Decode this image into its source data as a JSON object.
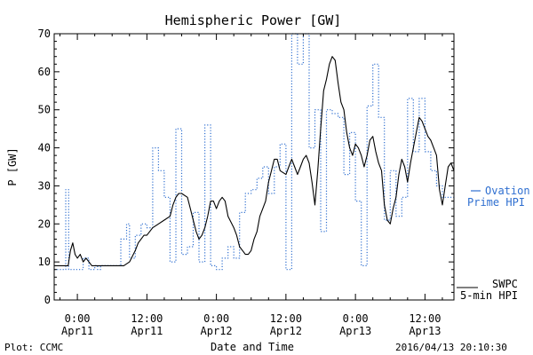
{
  "chart_data": {
    "type": "line",
    "title": "Hemispheric Power [GW]",
    "xlabel": "Date and Time",
    "ylabel": "P [GW]",
    "ylim": [
      0,
      70
    ],
    "xlim": [
      -4,
      65
    ],
    "x_unit": "hours from 2016-04-11 00:00 UT",
    "y_ticks": [
      0,
      10,
      20,
      30,
      40,
      50,
      60,
      70
    ],
    "x_ticks": [
      {
        "x": 0,
        "time": "0:00",
        "date": "Apr11"
      },
      {
        "x": 12,
        "time": "12:00",
        "date": "Apr11"
      },
      {
        "x": 24,
        "time": "0:00",
        "date": "Apr12"
      },
      {
        "x": 36,
        "time": "12:00",
        "date": "Apr12"
      },
      {
        "x": 48,
        "time": "0:00",
        "date": "Apr13"
      },
      {
        "x": 60,
        "time": "12:00",
        "date": "Apr13"
      }
    ],
    "grid": false,
    "legend_position": "right",
    "series": [
      {
        "name": "SWPC 5-min HPI",
        "style": "solid",
        "color": "#000000",
        "x": [
          -4,
          -2,
          -1.6,
          -1.2,
          -0.8,
          -0.4,
          0,
          0.5,
          1,
          1.5,
          2,
          2.5,
          3,
          4,
          5,
          6,
          7,
          8,
          9,
          10,
          10.5,
          11,
          11.5,
          12,
          13,
          14,
          15,
          16,
          16.5,
          17,
          17.5,
          18,
          19,
          19.5,
          20,
          20.5,
          21,
          21.5,
          22,
          22.5,
          23,
          23.5,
          24,
          24.5,
          25,
          25.5,
          26,
          27,
          27.5,
          28,
          28.5,
          29,
          29.5,
          30,
          30.5,
          31,
          31.5,
          32,
          32.5,
          33,
          33.5,
          34,
          34.5,
          35,
          36,
          36.5,
          37,
          37.5,
          38,
          38.5,
          39,
          39.5,
          40,
          40.5,
          41,
          41.5,
          42,
          42.5,
          43,
          43.5,
          44,
          44.5,
          45,
          45.5,
          46,
          46.5,
          47,
          47.5,
          48,
          48.5,
          49,
          49.5,
          50,
          50.5,
          51,
          51.5,
          52,
          52.5,
          53,
          53.5,
          54,
          54.5,
          55,
          55.5,
          56,
          56.5,
          57,
          57.5,
          58,
          58.5,
          59,
          59.5,
          60,
          60.5,
          61,
          61.5,
          62,
          62.5,
          63,
          63.5,
          64,
          64.5,
          65
        ],
        "values": [
          9,
          9,
          9,
          13,
          15,
          12,
          11,
          12,
          10,
          11,
          10,
          9,
          9,
          9,
          9,
          9,
          9,
          9,
          10,
          13,
          15,
          16,
          17,
          17,
          19,
          20,
          21,
          22,
          25,
          27,
          28,
          28,
          27,
          24,
          21,
          18,
          16,
          17,
          19,
          22,
          26,
          26,
          24,
          26,
          27,
          26,
          22,
          19,
          17,
          14,
          13,
          12,
          12,
          13,
          16,
          18,
          22,
          24,
          26,
          31,
          34,
          37,
          37,
          34,
          33,
          35,
          37,
          35,
          33,
          35,
          37,
          38,
          36,
          31,
          25,
          34,
          45,
          55,
          58,
          62,
          64,
          63,
          57,
          52,
          50,
          44,
          40,
          38,
          41,
          40,
          38,
          35,
          38,
          42,
          43,
          39,
          36,
          34,
          25,
          21,
          20,
          24,
          27,
          33,
          37,
          35,
          31,
          36,
          40,
          44,
          48,
          47,
          45,
          43,
          42,
          40,
          38,
          29,
          25,
          30,
          35,
          36,
          34
        ]
      },
      {
        "name": "Ovation Prime HPI",
        "style": "dotted",
        "color": "#2f6fd0",
        "x": [
          -4,
          -2,
          -2,
          -1.5,
          -1.5,
          0,
          0,
          1,
          1,
          2,
          2,
          3,
          3,
          3.5,
          3.5,
          4,
          4,
          7.5,
          7.5,
          8.5,
          8.5,
          9,
          9,
          10,
          10,
          11,
          11,
          12,
          12,
          13,
          13,
          14,
          14,
          15,
          15,
          16,
          16,
          17,
          17,
          18,
          18,
          19,
          19,
          20,
          20,
          21,
          21,
          22,
          22,
          23,
          23,
          24,
          24,
          25,
          25,
          26,
          26,
          27,
          27,
          28,
          28,
          29,
          29,
          30,
          30,
          31,
          31,
          32,
          32,
          33,
          33,
          34,
          34,
          35,
          35,
          36,
          36,
          37,
          37,
          38,
          38,
          39,
          39,
          40,
          40,
          41,
          41,
          42,
          42,
          43,
          43,
          44,
          44,
          45,
          45,
          46,
          46,
          47,
          47,
          48,
          48,
          49,
          49,
          50,
          50,
          51,
          51,
          52,
          52,
          53,
          53,
          54,
          54,
          55,
          55,
          56,
          56,
          57,
          57,
          58,
          58,
          59,
          59,
          60,
          60,
          61,
          61,
          62,
          62,
          63,
          63,
          64,
          64,
          65
        ],
        "values": [
          8,
          8,
          29,
          29,
          8,
          8,
          8,
          8,
          11,
          11,
          8,
          8,
          9,
          9,
          8,
          8,
          9,
          9,
          16,
          16,
          20,
          20,
          11,
          11,
          17,
          17,
          20,
          20,
          19,
          19,
          40,
          40,
          34,
          34,
          27,
          27,
          10,
          10,
          45,
          45,
          12,
          12,
          14,
          14,
          23,
          23,
          10,
          10,
          46,
          46,
          9,
          9,
          8,
          8,
          11,
          11,
          14,
          14,
          11,
          11,
          23,
          23,
          28,
          28,
          29,
          29,
          32,
          32,
          35,
          35,
          28,
          28,
          35,
          35,
          41,
          41,
          8,
          8,
          70,
          70,
          62,
          62,
          70,
          70,
          40,
          40,
          50,
          50,
          18,
          18,
          50,
          50,
          49,
          49,
          48,
          48,
          33,
          33,
          44,
          44,
          26,
          26,
          9,
          9,
          51,
          51,
          62,
          62,
          48,
          48,
          21,
          21,
          34,
          34,
          22,
          22,
          27,
          27,
          53,
          53,
          39,
          39,
          53,
          53,
          39,
          39,
          34,
          34,
          30,
          30,
          27,
          27,
          27,
          27
        ]
      }
    ]
  },
  "legend": {
    "ovation_line1": "Ovation",
    "ovation_line2": "Prime HPI",
    "swpc_line1": "SWPC",
    "swpc_line2": "5-min HPI"
  },
  "footer": {
    "left": "Plot: CCMC",
    "timestamp": "2016/04/13 20:10:30"
  },
  "colors": {
    "ovation": "#2f6fd0",
    "swpc": "#000000"
  }
}
